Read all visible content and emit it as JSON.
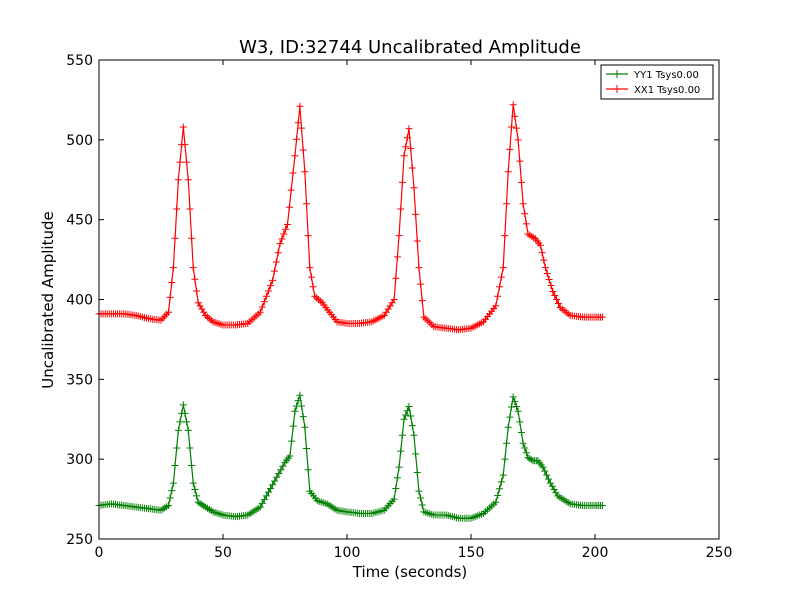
{
  "chart_data": {
    "type": "line",
    "title": "W3, ID:32744 Uncalibrated Amplitude",
    "xlabel": "Time (seconds)",
    "ylabel": "Uncalibrated Amplitude",
    "xlim": [
      0,
      250
    ],
    "ylim": [
      250,
      550
    ],
    "xticks": [
      0,
      50,
      100,
      150,
      200,
      250
    ],
    "yticks": [
      250,
      300,
      350,
      400,
      450,
      500,
      550
    ],
    "legend_position": "top-right",
    "grid": false,
    "series": [
      {
        "name": "YY1 Tsys0.00",
        "color": "#008000",
        "marker": "+",
        "points": [
          [
            0,
            271
          ],
          [
            5,
            272
          ],
          [
            10,
            271
          ],
          [
            15,
            270
          ],
          [
            20,
            269
          ],
          [
            25,
            268
          ],
          [
            28,
            271
          ],
          [
            30,
            285
          ],
          [
            32,
            318
          ],
          [
            34,
            334
          ],
          [
            36,
            318
          ],
          [
            38,
            285
          ],
          [
            40,
            273
          ],
          [
            43,
            270
          ],
          [
            46,
            267
          ],
          [
            50,
            265
          ],
          [
            55,
            264
          ],
          [
            60,
            265
          ],
          [
            65,
            270
          ],
          [
            70,
            284
          ],
          [
            75,
            298
          ],
          [
            77,
            302
          ],
          [
            79,
            330
          ],
          [
            81,
            340
          ],
          [
            83,
            320
          ],
          [
            85,
            280
          ],
          [
            88,
            274
          ],
          [
            92,
            272
          ],
          [
            96,
            268
          ],
          [
            100,
            267
          ],
          [
            105,
            266
          ],
          [
            110,
            266
          ],
          [
            115,
            268
          ],
          [
            119,
            275
          ],
          [
            121,
            295
          ],
          [
            123,
            325
          ],
          [
            125,
            333
          ],
          [
            127,
            315
          ],
          [
            129,
            280
          ],
          [
            131,
            267
          ],
          [
            135,
            265
          ],
          [
            140,
            265
          ],
          [
            145,
            263
          ],
          [
            150,
            263
          ],
          [
            155,
            266
          ],
          [
            160,
            273
          ],
          [
            163,
            290
          ],
          [
            165,
            320
          ],
          [
            167,
            339
          ],
          [
            169,
            330
          ],
          [
            171,
            310
          ],
          [
            173,
            301
          ],
          [
            175,
            299
          ],
          [
            177,
            299
          ],
          [
            179,
            295
          ],
          [
            182,
            285
          ],
          [
            185,
            277
          ],
          [
            190,
            272
          ],
          [
            195,
            271
          ],
          [
            200,
            271
          ],
          [
            203,
            271
          ]
        ]
      },
      {
        "name": "XX1 Tsys0.00",
        "color": "#ff0000",
        "marker": "+",
        "points": [
          [
            0,
            391
          ],
          [
            5,
            391
          ],
          [
            10,
            391
          ],
          [
            15,
            390
          ],
          [
            20,
            388
          ],
          [
            25,
            387
          ],
          [
            28,
            392
          ],
          [
            30,
            420
          ],
          [
            32,
            475
          ],
          [
            34,
            508
          ],
          [
            36,
            475
          ],
          [
            38,
            420
          ],
          [
            40,
            398
          ],
          [
            43,
            390
          ],
          [
            46,
            386
          ],
          [
            50,
            384
          ],
          [
            55,
            384
          ],
          [
            60,
            385
          ],
          [
            65,
            392
          ],
          [
            70,
            412
          ],
          [
            73,
            435
          ],
          [
            76,
            447
          ],
          [
            79,
            490
          ],
          [
            81,
            521
          ],
          [
            83,
            480
          ],
          [
            85,
            420
          ],
          [
            87,
            402
          ],
          [
            90,
            398
          ],
          [
            93,
            392
          ],
          [
            96,
            386
          ],
          [
            100,
            385
          ],
          [
            105,
            385
          ],
          [
            110,
            386
          ],
          [
            115,
            390
          ],
          [
            119,
            400
          ],
          [
            121,
            440
          ],
          [
            123,
            490
          ],
          [
            125,
            507
          ],
          [
            127,
            470
          ],
          [
            129,
            420
          ],
          [
            131,
            389
          ],
          [
            135,
            383
          ],
          [
            140,
            382
          ],
          [
            145,
            381
          ],
          [
            150,
            382
          ],
          [
            155,
            386
          ],
          [
            160,
            396
          ],
          [
            163,
            420
          ],
          [
            165,
            480
          ],
          [
            167,
            522
          ],
          [
            169,
            500
          ],
          [
            171,
            460
          ],
          [
            173,
            441
          ],
          [
            176,
            438
          ],
          [
            178,
            434
          ],
          [
            180,
            420
          ],
          [
            183,
            405
          ],
          [
            186,
            395
          ],
          [
            190,
            390
          ],
          [
            195,
            389
          ],
          [
            200,
            389
          ],
          [
            203,
            389
          ]
        ]
      }
    ]
  }
}
